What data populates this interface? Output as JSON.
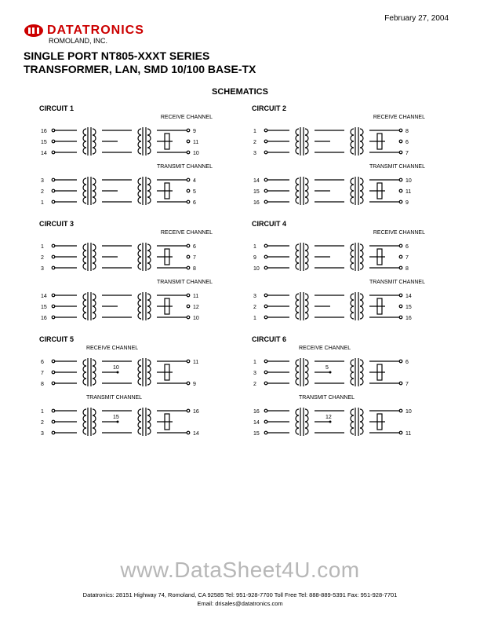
{
  "date": "February 27, 2004",
  "company": {
    "logo_text": "DATATRONICS",
    "subtitle": "ROMOLAND, INC.",
    "logo_color": "#cc0000"
  },
  "title_line1": "SINGLE PORT NT805-XXXT SERIES",
  "title_line2": "TRANSFORMER, LAN, SMD 10/100 BASE-TX",
  "section_heading": "SCHEMATICS",
  "circuits": [
    {
      "name": "CIRCUIT 1",
      "blocks": [
        {
          "channel": "RECEIVE CHANNEL",
          "channel_pos": "right",
          "left_pins": [
            "16",
            "15",
            "14"
          ],
          "right_pins": [
            "9",
            "11",
            "10"
          ]
        },
        {
          "channel": "TRANSMIT CHANNEL",
          "channel_pos": "right",
          "left_pins": [
            "3",
            "2",
            "1"
          ],
          "right_pins": [
            "4",
            "5",
            "6"
          ]
        }
      ]
    },
    {
      "name": "CIRCUIT 2",
      "blocks": [
        {
          "channel": "RECEIVE CHANNEL",
          "channel_pos": "right",
          "left_pins": [
            "1",
            "2",
            "3"
          ],
          "right_pins": [
            "8",
            "6",
            "7"
          ]
        },
        {
          "channel": "TRANSMIT CHANNEL",
          "channel_pos": "right",
          "left_pins": [
            "14",
            "15",
            "16"
          ],
          "right_pins": [
            "10",
            "11",
            "9"
          ]
        }
      ]
    },
    {
      "name": "CIRCUIT 3",
      "blocks": [
        {
          "channel": "RECEIVE CHANNEL",
          "channel_pos": "right",
          "left_pins": [
            "1",
            "2",
            "3"
          ],
          "right_pins": [
            "6",
            "7",
            "8"
          ]
        },
        {
          "channel": "TRANSMIT CHANNEL",
          "channel_pos": "right",
          "left_pins": [
            "14",
            "15",
            "16"
          ],
          "right_pins": [
            "11",
            "12",
            "10"
          ]
        }
      ]
    },
    {
      "name": "CIRCUIT 4",
      "blocks": [
        {
          "channel": "RECEIVE CHANNEL",
          "channel_pos": "right",
          "left_pins": [
            "1",
            "9",
            "10"
          ],
          "right_pins": [
            "6",
            "7",
            "8"
          ]
        },
        {
          "channel": "TRANSMIT CHANNEL",
          "channel_pos": "right",
          "left_pins": [
            "3",
            "2",
            "1"
          ],
          "right_pins": [
            "14",
            "15",
            "16"
          ]
        }
      ]
    },
    {
      "name": "CIRCUIT 5",
      "blocks": [
        {
          "channel": "RECEIVE CHANNEL",
          "channel_pos": "left",
          "left_pins": [
            "6",
            "7",
            "8"
          ],
          "mid_pin": "10",
          "right_pins": [
            "11",
            "",
            "9"
          ]
        },
        {
          "channel": "TRANSMIT CHANNEL",
          "channel_pos": "left",
          "left_pins": [
            "1",
            "2",
            "3"
          ],
          "mid_pin": "15",
          "right_pins": [
            "16",
            "",
            "14"
          ]
        }
      ]
    },
    {
      "name": "CIRCUIT 6",
      "blocks": [
        {
          "channel": "RECEIVE CHANNEL",
          "channel_pos": "left",
          "left_pins": [
            "1",
            "3",
            "2"
          ],
          "mid_pin": "5",
          "right_pins": [
            "6",
            "",
            "7"
          ]
        },
        {
          "channel": "TRANSMIT CHANNEL",
          "channel_pos": "left",
          "left_pins": [
            "16",
            "14",
            "15"
          ],
          "mid_pin": "12",
          "right_pins": [
            "10",
            "",
            "11"
          ]
        }
      ]
    }
  ],
  "watermark": "www.DataSheet4U.com",
  "footer": {
    "line1": "Datatronics:   28151 Highway 74, Romoland, CA 92585   Tel: 951-928-7700   Toll Free Tel: 888-889-5391   Fax: 951-928-7701",
    "line2": "Email: drisales@datatronics.com"
  },
  "style": {
    "page_bg": "#ffffff",
    "text_color": "#000000",
    "watermark_color": "#b7b7b7",
    "schematic_stroke": "#000000",
    "schematic_stroke_width": 1.2
  }
}
